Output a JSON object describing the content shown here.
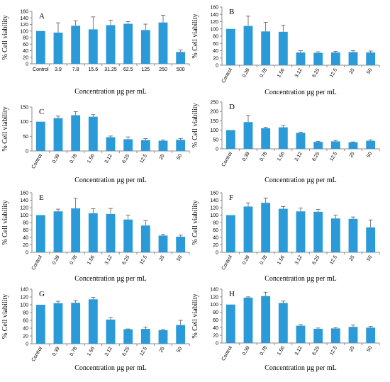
{
  "figure": {
    "bar_color": "#2a9ad8"
  },
  "chart_data": [
    {
      "type": "bar",
      "panel_label": "A",
      "categories": [
        "Control",
        "3.9",
        "7.8",
        "15.6",
        "31.25",
        "62.5",
        "125",
        "250",
        "500"
      ],
      "values": [
        100,
        95,
        116,
        105,
        118,
        122,
        103,
        126,
        36
      ],
      "errors": [
        0,
        30,
        15,
        38,
        15,
        7,
        18,
        22,
        6
      ],
      "ylabel": "% Cell viability",
      "xlabel": "Concentration µg per mL",
      "ylim": [
        0,
        160
      ],
      "yticks": [
        0,
        20,
        40,
        60,
        80,
        100,
        120,
        140,
        160
      ],
      "x_label_rotation": 0,
      "grid": false
    },
    {
      "type": "bar",
      "panel_label": "B",
      "categories": [
        "Control",
        "0.39",
        "0.78",
        "1.56",
        "3.12",
        "6.25",
        "12.5",
        "25",
        "50"
      ],
      "values": [
        100,
        108,
        93,
        92,
        35,
        34,
        35,
        36,
        35
      ],
      "errors": [
        0,
        27,
        25,
        18,
        5,
        3,
        3,
        4,
        4
      ],
      "ylabel": "% Cell viability",
      "xlabel": "Concentration µg per mL",
      "ylim": [
        0,
        160
      ],
      "yticks": [
        0,
        20,
        40,
        60,
        80,
        100,
        120,
        140,
        160
      ],
      "x_label_rotation": -60,
      "grid": false
    },
    {
      "type": "bar",
      "panel_label": "C",
      "categories": [
        "Control",
        "0.39",
        "0.78",
        "1.56",
        "3.12",
        "6.25",
        "12.5",
        "25",
        "50"
      ],
      "values": [
        100,
        112,
        122,
        117,
        47,
        40,
        37,
        35,
        38
      ],
      "errors": [
        0,
        7,
        12,
        7,
        4,
        8,
        5,
        2,
        5
      ],
      "ylabel": "% Cell viability",
      "xlabel": "Concentration µg per mL",
      "ylim": [
        0,
        150
      ],
      "yticks": [
        0,
        50,
        100,
        150
      ],
      "x_label_rotation": -60,
      "grid": false
    },
    {
      "type": "bar",
      "panel_label": "D",
      "categories": [
        "Control",
        "0.39",
        "0.78",
        "1.56",
        "3.12",
        "6.25",
        "12.5",
        "25",
        "50"
      ],
      "values": [
        100,
        143,
        110,
        115,
        85,
        37,
        40,
        35,
        43
      ],
      "errors": [
        0,
        35,
        6,
        10,
        4,
        3,
        5,
        2,
        5
      ],
      "ylabel": "% Cell viability",
      "xlabel": "Concentration µg per mL",
      "ylim": [
        0,
        250
      ],
      "yticks": [
        0,
        50,
        100,
        150,
        200,
        250
      ],
      "x_label_rotation": -60,
      "grid": false
    },
    {
      "type": "bar",
      "panel_label": "E",
      "categories": [
        "Control",
        "0.39",
        "0.78",
        "1.56",
        "3.12",
        "6.25",
        "12.5",
        "25",
        "50"
      ],
      "values": [
        100,
        110,
        118,
        105,
        103,
        88,
        72,
        45,
        42
      ],
      "errors": [
        0,
        6,
        27,
        12,
        15,
        12,
        13,
        3,
        4
      ],
      "ylabel": "% Cell viability",
      "xlabel": "Concentration µg per mL",
      "ylim": [
        0,
        160
      ],
      "yticks": [
        0,
        20,
        40,
        60,
        80,
        100,
        120,
        140,
        160
      ],
      "x_label_rotation": -60,
      "grid": false
    },
    {
      "type": "bar",
      "panel_label": "F",
      "categories": [
        "Control",
        "0.39",
        "0.78",
        "1.56",
        "3.12",
        "6.25",
        "12.5",
        "25",
        "50"
      ],
      "values": [
        100,
        123,
        133,
        117,
        110,
        109,
        91,
        90,
        67
      ],
      "errors": [
        0,
        10,
        13,
        6,
        9,
        6,
        9,
        5,
        20
      ],
      "ylabel": "% Cell viability",
      "xlabel": "Concentration µg per mL",
      "ylim": [
        0,
        160
      ],
      "yticks": [
        0,
        20,
        40,
        60,
        80,
        100,
        120,
        140,
        160
      ],
      "x_label_rotation": -60,
      "grid": false
    },
    {
      "type": "bar",
      "panel_label": "G",
      "categories": [
        "Control",
        "0.39",
        "0.78",
        "1.56",
        "3.12",
        "6.25",
        "12.5",
        "25",
        "50"
      ],
      "values": [
        100,
        104,
        105,
        114,
        62,
        37,
        38,
        35,
        48
      ],
      "errors": [
        0,
        5,
        6,
        5,
        5,
        1,
        5,
        1,
        12
      ],
      "ylabel": "% Cell viability",
      "xlabel": "Concentration µg per mL",
      "ylim": [
        0,
        140
      ],
      "yticks": [
        0,
        20,
        40,
        60,
        80,
        100,
        120,
        140
      ],
      "x_label_rotation": -60,
      "grid": false
    },
    {
      "type": "bar",
      "panel_label": "H",
      "categories": [
        "Control",
        "0.39",
        "0.78",
        "1.56",
        "3.12",
        "6.25",
        "12.5",
        "25",
        "50"
      ],
      "values": [
        100,
        118,
        122,
        104,
        45,
        37,
        38,
        42,
        40
      ],
      "errors": [
        0,
        2,
        10,
        5,
        3,
        2,
        2,
        5,
        3
      ],
      "ylabel": "% Cell viability",
      "xlabel": "Concentration µg per mL",
      "ylim": [
        0,
        140
      ],
      "yticks": [
        0,
        20,
        40,
        60,
        80,
        100,
        120,
        140
      ],
      "x_label_rotation": -60,
      "grid": false
    }
  ]
}
